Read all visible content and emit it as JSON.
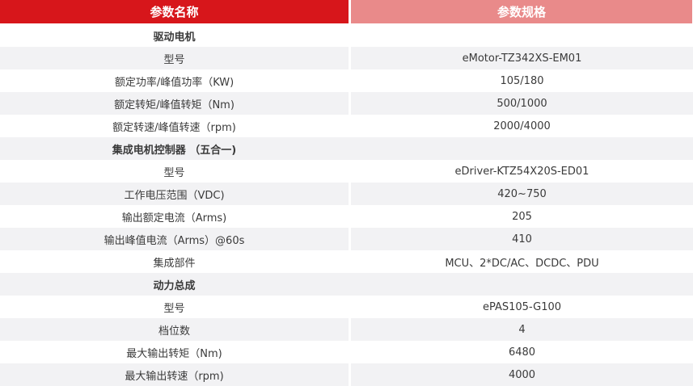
{
  "header": {
    "name": "参数名称",
    "spec": "参数规格"
  },
  "colors": {
    "header_left": "#d7161b",
    "header_right": "#e98a8a",
    "stripe": "#f2f2f4"
  },
  "rows": [
    {
      "name": "驱动电机",
      "value": "",
      "section": true
    },
    {
      "name": "型号",
      "value": "eMotor-TZ342XS-EM01"
    },
    {
      "name": "额定功率/峰值功率（KW)",
      "value": "105/180"
    },
    {
      "name": "额定转矩/峰值转矩（Nm)",
      "value": "500/1000"
    },
    {
      "name": "额定转速/峰值转速（rpm)",
      "value": "2000/4000"
    },
    {
      "name": "集成电机控制器 （五合一)",
      "value": "",
      "section": true
    },
    {
      "name": "型号",
      "value": "eDriver-KTZ54X20S-ED01"
    },
    {
      "name": "工作电压范围（VDC)",
      "value": "420~750"
    },
    {
      "name": "输出额定电流（Arms)",
      "value": "205"
    },
    {
      "name": "输出峰值电流（Arms）@60s",
      "value": "410"
    },
    {
      "name": "集成部件",
      "value": "MCU、2*DC/AC、DCDC、PDU"
    },
    {
      "name": "动力总成",
      "value": "",
      "section": true
    },
    {
      "name": "型号",
      "value": "ePAS105-G100"
    },
    {
      "name": "档位数",
      "value": "4"
    },
    {
      "name": "最大输出转矩（Nm)",
      "value": "6480"
    },
    {
      "name": "最大输出转速（rpm)",
      "value": "4000"
    }
  ]
}
